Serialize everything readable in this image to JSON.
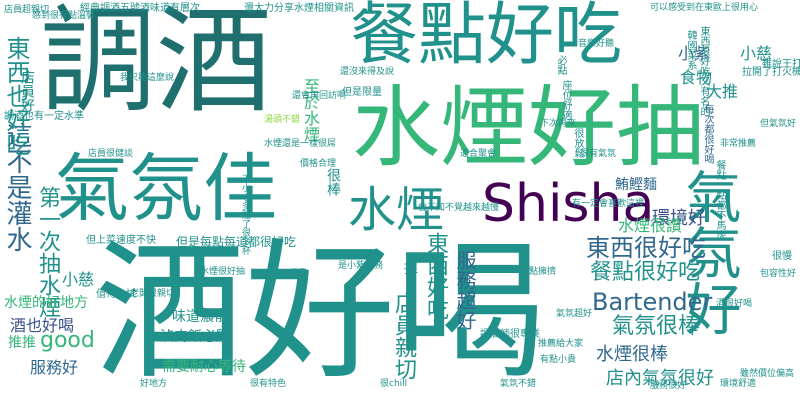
{
  "palette": {
    "purple": "#440154",
    "indigo": "#3b528b",
    "blue": "#31688e",
    "teal": "#21918c",
    "green": "#35b779",
    "lime": "#90d743",
    "yellow": "#c9dd2c",
    "darkteal": "#1f6f6f"
  },
  "words": [
    {
      "text": "酒好喝"
    },
    {
      "text": "調酒"
    },
    {
      "text": "水煙好抽"
    },
    {
      "text": "氣氛佳"
    },
    {
      "text": "餐點好吃"
    },
    {
      "text": "Shisha"
    },
    {
      "text": "氣氛好"
    },
    {
      "text": "水煙"
    },
    {
      "text": "Bartender"
    },
    {
      "text": "東西很好吃"
    },
    {
      "text": "餐點很好吃"
    },
    {
      "text": "氣氛很棒"
    },
    {
      "text": "水煙很棒"
    },
    {
      "text": "店內氣氛很好"
    },
    {
      "text": "環境好"
    },
    {
      "text": "東西好吃"
    },
    {
      "text": "服務超好"
    },
    {
      "text": "店員親切"
    },
    {
      "text": "這不是灌水"
    },
    {
      "text": "東西也好吃"
    },
    {
      "text": "第一次抽水煙"
    },
    {
      "text": "good"
    },
    {
      "text": "服務好"
    },
    {
      "text": "酒也好喝"
    },
    {
      "text": "水煙的好地方"
    },
    {
      "text": "推推"
    },
    {
      "text": "小慈"
    },
    {
      "text": "水煙很讚"
    },
    {
      "text": "大推"
    },
    {
      "text": "小紫"
    },
    {
      "text": "小慈"
    },
    {
      "text": "食物"
    },
    {
      "text": "至於水煙"
    },
    {
      "text": "推"
    },
    {
      "text": "很棒"
    },
    {
      "text": "鮪鰹麵"
    },
    {
      "text": "店員好"
    },
    {
      "text": "可以感受到在東歐上很用心"
    },
    {
      "text": "東西很好吃又有名的"
    },
    {
      "text": "韓國菜系"
    },
    {
      "text": "拉開了打火機"
    },
    {
      "text": "雖說王打水煙"
    },
    {
      "text": "不小心多點了很多杯"
    },
    {
      "text": "每次都很好喝"
    },
    {
      "text": "很慢"
    },
    {
      "text": "包容性好"
    },
    {
      "text": "調酒也有一定水準"
    },
    {
      "text": "我只能這麼說"
    },
    {
      "text": "還沒來得及說"
    },
    {
      "text": "還會再回訪啊"
    },
    {
      "text": "但是限量"
    },
    {
      "text": "湯頭不錯"
    },
    {
      "text": "水煙還是一樣很屌"
    },
    {
      "text": "但是每點每道都很好吃"
    },
    {
      "text": "但上菜速度不快"
    },
    {
      "text": "店員很健談"
    },
    {
      "text": "滷肉飯必點"
    },
    {
      "text": "味道濃郁"
    },
    {
      "text": "需要耐心等待"
    },
    {
      "text": "水煙很好抽"
    },
    {
      "text": "是小紫服務"
    },
    {
      "text": "氣氛超好"
    },
    {
      "text": "一點擁擠"
    },
    {
      "text": "經典調酒五號酒味道有層次"
    },
    {
      "text": "感到很有點溫馨"
    },
    {
      "text": "店員超親切"
    },
    {
      "text": "還大力分享水煙相關資訊"
    },
    {
      "text": "很有氣氛"
    },
    {
      "text": "會不知不覺越來越慢"
    },
    {
      "text": "有一定會喜歡這裡"
    },
    {
      "text": "餐點一點都不馬虎"
    },
    {
      "text": "雖然價位偏高"
    },
    {
      "text": "但氣氛好"
    },
    {
      "text": "非常推薦"
    },
    {
      "text": "下次再來"
    },
    {
      "text": "適合聚會"
    },
    {
      "text": "很推"
    },
    {
      "text": "值得一試"
    },
    {
      "text": "價格合理"
    },
    {
      "text": "老闆很親切"
    },
    {
      "text": "很放鬆"
    },
    {
      "text": "必點"
    },
    {
      "text": "音樂好聽"
    },
    {
      "text": "座位舒適"
    },
    {
      "text": "推薦給大家"
    },
    {
      "text": "有點小貴"
    },
    {
      "text": "氣氛不錯"
    },
    {
      "text": "調酒師很專業"
    },
    {
      "text": "很chill"
    },
    {
      "text": "環境舒適"
    },
    {
      "text": "服務很好"
    },
    {
      "text": "酒很好喝"
    },
    {
      "text": "很有特色"
    },
    {
      "text": "好地方"
    }
  ]
}
